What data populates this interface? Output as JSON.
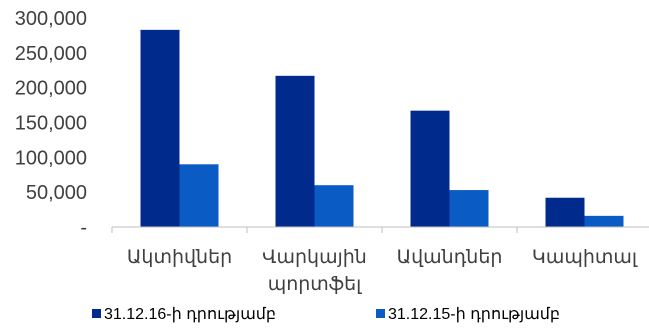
{
  "chart_data": {
    "type": "bar",
    "categories": [
      [
        "Ակտիվներ"
      ],
      [
        "Վարկային",
        "պորտֆել"
      ],
      [
        "Ավանդներ"
      ],
      [
        "Կապիտալ"
      ]
    ],
    "series": [
      {
        "name": "31.12.16-ի դրությամբ",
        "values": [
          283000,
          217000,
          167000,
          42000
        ],
        "color": "#002a8c"
      },
      {
        "name": "31.12.15-ի դրությամբ",
        "values": [
          90000,
          60000,
          53000,
          16000
        ],
        "color": "#0a5cc4"
      }
    ],
    "ylim": [
      0,
      300000
    ],
    "yticks": [
      {
        "value": 0,
        "label": "-"
      },
      {
        "value": 50000,
        "label": "50,000"
      },
      {
        "value": 100000,
        "label": "100,000"
      },
      {
        "value": 150000,
        "label": "150,000"
      },
      {
        "value": 200000,
        "label": "200,000"
      },
      {
        "value": 250000,
        "label": "250,000"
      },
      {
        "value": 300000,
        "label": "300,000"
      }
    ],
    "grid": false,
    "legend": "bottom"
  }
}
